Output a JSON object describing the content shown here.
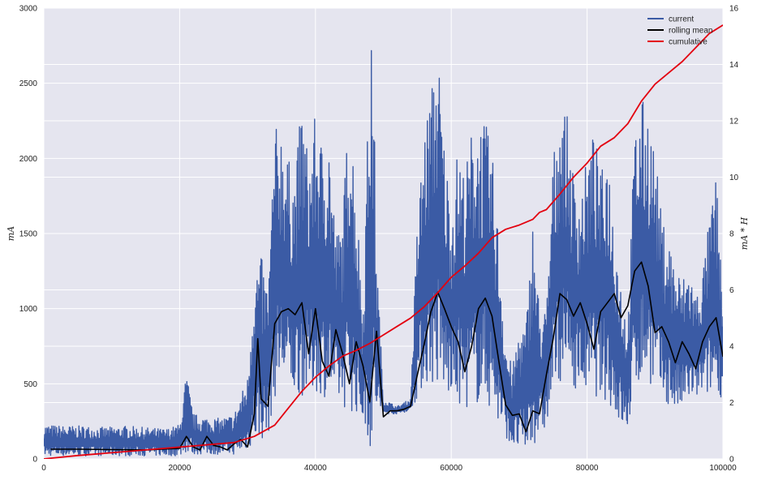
{
  "chart_data": {
    "type": "line",
    "title": "",
    "xlabel": "",
    "ylabel": "mA",
    "y2label": "mA * H",
    "xlim": [
      0,
      100000
    ],
    "ylim": [
      0,
      3000
    ],
    "y2lim": [
      0,
      16
    ],
    "xticks": [
      0,
      20000,
      40000,
      60000,
      80000,
      100000
    ],
    "yticks": [
      0,
      500,
      1000,
      1500,
      2000,
      2500,
      3000
    ],
    "y2ticks": [
      0,
      2,
      4,
      6,
      8,
      10,
      12,
      14,
      16
    ],
    "grid": true,
    "legend_position": "top-right",
    "legend": [
      "current",
      "rolling mean",
      "cumulative"
    ],
    "colors": {
      "current": "#3b5ba5",
      "rolling_mean": "#000000",
      "cumulative": "#e3000f",
      "background": "#e5e5ef",
      "grid": "#ffffff"
    },
    "series": [
      {
        "name": "current",
        "axis": "left",
        "x": [
          0,
          3000,
          6000,
          9000,
          12000,
          15000,
          18000,
          20000,
          21000,
          22000,
          24000,
          26000,
          28000,
          30000,
          31000,
          32000,
          33000,
          34000,
          35000,
          36000,
          37000,
          38000,
          39000,
          40000,
          41000,
          42000,
          43000,
          44000,
          45000,
          46000,
          47000,
          48000,
          48500,
          49000,
          50000,
          52000,
          54000,
          55000,
          56000,
          57000,
          58000,
          59000,
          60000,
          61000,
          62000,
          63000,
          64000,
          65000,
          66000,
          67000,
          68000,
          69000,
          70000,
          71000,
          72000,
          73000,
          74000,
          75000,
          76000,
          77000,
          78000,
          79000,
          80000,
          81000,
          82000,
          83000,
          84000,
          85000,
          86000,
          87000,
          88000,
          89000,
          90000,
          91000,
          92000,
          93000,
          94000,
          95000,
          96000,
          97000,
          98000,
          99000,
          100000
        ],
        "low": [
          20,
          20,
          20,
          20,
          20,
          20,
          20,
          20,
          40,
          30,
          30,
          30,
          30,
          60,
          100,
          120,
          150,
          400,
          500,
          420,
          420,
          420,
          400,
          450,
          420,
          400,
          380,
          350,
          320,
          300,
          250,
          60,
          40,
          280,
          300,
          300,
          320,
          400,
          480,
          500,
          450,
          420,
          400,
          350,
          340,
          340,
          360,
          380,
          300,
          200,
          150,
          80,
          40,
          40,
          80,
          150,
          200,
          420,
          520,
          520,
          480,
          450,
          430,
          420,
          400,
          380,
          300,
          200,
          180,
          450,
          500,
          520,
          450,
          400,
          350,
          300,
          330,
          380,
          400,
          420,
          420,
          440,
          400
        ],
        "high": [
          230,
          220,
          220,
          210,
          220,
          210,
          200,
          230,
          580,
          300,
          280,
          270,
          300,
          550,
          1300,
          1350,
          1150,
          2200,
          2250,
          2000,
          1900,
          2400,
          2000,
          2300,
          2100,
          2200,
          1500,
          1600,
          2450,
          1800,
          1000,
          2800,
          2700,
          1400,
          400,
          350,
          400,
          1600,
          2200,
          2450,
          2780,
          2100,
          1700,
          2100,
          1900,
          2200,
          2300,
          2250,
          2050,
          1500,
          800,
          600,
          900,
          900,
          1600,
          1000,
          1000,
          2000,
          2420,
          2300,
          1900,
          1800,
          2000,
          2200,
          1900,
          2100,
          1600,
          1200,
          900,
          2200,
          2400,
          2350,
          2050,
          1600,
          1500,
          1300,
          1200,
          1300,
          1100,
          1250,
          1600,
          1900,
          1100
        ]
      },
      {
        "name": "rolling mean",
        "axis": "left",
        "x": [
          1000,
          5000,
          10000,
          15000,
          20000,
          21000,
          22000,
          23000,
          24000,
          25000,
          26000,
          27000,
          28000,
          29000,
          30000,
          31000,
          31500,
          32000,
          33000,
          34000,
          35000,
          36000,
          37000,
          38000,
          39000,
          40000,
          41000,
          42000,
          43000,
          44000,
          45000,
          46000,
          47000,
          48000,
          49000,
          50000,
          51000,
          52000,
          53000,
          54000,
          55000,
          56000,
          57000,
          58000,
          59000,
          60000,
          61000,
          62000,
          63000,
          64000,
          65000,
          66000,
          67000,
          68000,
          69000,
          70000,
          71000,
          72000,
          73000,
          74000,
          75000,
          76000,
          77000,
          78000,
          79000,
          80000,
          81000,
          82000,
          83000,
          84000,
          85000,
          86000,
          87000,
          88000,
          89000,
          90000,
          91000,
          92000,
          93000,
          94000,
          95000,
          96000,
          97000,
          98000,
          99000,
          100000
        ],
        "values": [
          65,
          65,
          62,
          60,
          70,
          150,
          80,
          60,
          150,
          90,
          80,
          60,
          100,
          130,
          80,
          300,
          800,
          400,
          350,
          900,
          980,
          1000,
          960,
          1040,
          700,
          1000,
          650,
          550,
          860,
          700,
          500,
          780,
          620,
          380,
          850,
          280,
          320,
          320,
          330,
          350,
          560,
          760,
          980,
          1110,
          1000,
          880,
          780,
          580,
          750,
          1000,
          1070,
          950,
          650,
          360,
          290,
          300,
          180,
          320,
          300,
          560,
          800,
          1100,
          1060,
          950,
          1040,
          900,
          730,
          980,
          1040,
          1100,
          940,
          1020,
          1250,
          1310,
          1150,
          840,
          880,
          780,
          640,
          780,
          700,
          600,
          780,
          880,
          940,
          680
        ]
      },
      {
        "name": "cumulative",
        "axis": "right",
        "x": [
          0,
          5000,
          10000,
          15000,
          20000,
          22000,
          25000,
          28000,
          31000,
          34000,
          36000,
          38000,
          40000,
          42000,
          44000,
          46000,
          48000,
          50000,
          52000,
          54000,
          56000,
          58000,
          60000,
          62000,
          64000,
          66000,
          68000,
          70000,
          72000,
          73000,
          74000,
          76000,
          78000,
          80000,
          82000,
          84000,
          86000,
          88000,
          90000,
          92000,
          94000,
          96000,
          98000,
          100000
        ],
        "values": [
          0.0,
          0.12,
          0.22,
          0.32,
          0.42,
          0.46,
          0.52,
          0.58,
          0.8,
          1.2,
          1.8,
          2.4,
          2.9,
          3.3,
          3.65,
          3.85,
          4.1,
          4.4,
          4.7,
          5.0,
          5.4,
          5.9,
          6.45,
          6.85,
          7.3,
          7.85,
          8.15,
          8.3,
          8.5,
          8.75,
          8.85,
          9.4,
          10.0,
          10.5,
          11.1,
          11.4,
          11.9,
          12.7,
          13.3,
          13.7,
          14.1,
          14.6,
          15.1,
          15.4
        ]
      }
    ]
  }
}
